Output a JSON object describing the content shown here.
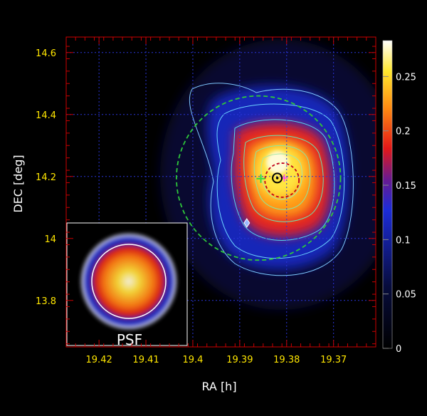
{
  "chart_data": {
    "type": "heatmap",
    "title": "",
    "xlabel": "RA [h]",
    "ylabel": "DEC [deg]",
    "x_ticks": [
      "19.42",
      "19.41",
      "19.4",
      "19.39",
      "19.38",
      "19.37"
    ],
    "y_ticks": [
      "14.6",
      "14.4",
      "14.2",
      "14",
      "13.8"
    ],
    "xlim": [
      19.427,
      19.361
    ],
    "ylim": [
      13.65,
      14.65
    ],
    "x_reversed": true,
    "grid": true,
    "colorbar": {
      "ticks": [
        "0.25",
        "0.2",
        "0.15",
        "0.1",
        "0.05",
        "0"
      ],
      "range": [
        0,
        0.283
      ],
      "colormap": "black-blue-red-yellow-white"
    },
    "excess_peak": {
      "ra": 19.384,
      "dec": 14.2,
      "value": 0.283
    },
    "markers": [
      {
        "kind": "circled-dot",
        "ra": 19.382,
        "dec": 14.195
      },
      {
        "kind": "green-cross",
        "ra": 19.3855,
        "dec": 14.193
      },
      {
        "kind": "magenta-cross",
        "ra": 19.3805,
        "dec": 14.195
      },
      {
        "kind": "diamond",
        "ra": 19.3885,
        "dec": 14.05
      }
    ],
    "circles": [
      {
        "kind": "large-green-dashed",
        "ra": 19.386,
        "dec": 14.195,
        "radius_deg": 0.265
      },
      {
        "kind": "small-red-dashed",
        "ra": 19.381,
        "dec": 14.188,
        "radius_deg": 0.055
      }
    ],
    "inset_label": "PSF"
  },
  "colors": {
    "background": "#000000",
    "frame": "#cc0000",
    "grid": "#2a35d8",
    "tick_text": "#ffe600"
  }
}
